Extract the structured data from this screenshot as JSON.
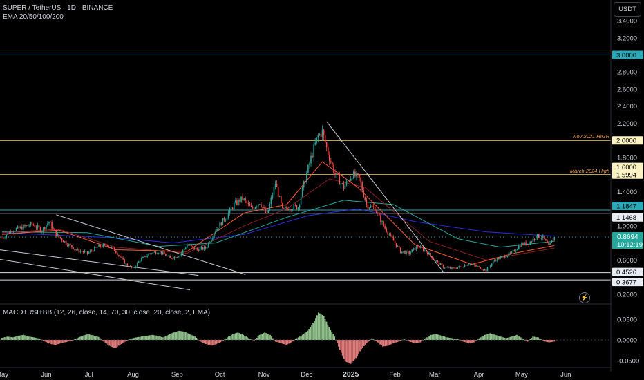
{
  "header": {
    "symbol_line": "SUPER / TetherUS · 1D · BINANCE",
    "indicator_line": "EMA 20/50/100/200",
    "macd_label": "MACD+RSI+BB (12, 26, close, 14, 70, 30, close, 20, close, 2, EMA)",
    "currency_button": "USDT"
  },
  "colors": {
    "background": "#000000",
    "up_candle": "#26a69a",
    "down_candle": "#ef5350",
    "ema20": "#ff5a36",
    "ema50": "#8a1f1f",
    "ema100": "#26a69a",
    "ema200": "#2a2ee0",
    "resistance_teal": "#2aa9b8",
    "yellow_level": "#f5d76e",
    "white_level": "#d8dde6",
    "trendline": "#c9ccd3",
    "hist_up": "#8fbf8a",
    "hist_down": "#e07a7a",
    "last_price": "#26a69a"
  },
  "chart_data": {
    "type": "candlestick",
    "symbol": "SUPER / TetherUS",
    "timeframe": "1D",
    "exchange": "BINANCE",
    "y_axis_ticks": [
      "3.4000",
      "3.2000",
      "2.8000",
      "2.6000",
      "2.4000",
      "2.2000",
      "1.8000",
      "1.4000",
      "1.0000",
      "0.8000",
      "0.6000",
      "0.2000"
    ],
    "x_axis_ticks": [
      "May",
      "Jun",
      "Jul",
      "Aug",
      "Sep",
      "Oct",
      "Nov",
      "Dec",
      "2025",
      "Feb",
      "Mar",
      "Apr",
      "May",
      "Jun"
    ],
    "last_price": "0.8694",
    "countdown": "10:12:19",
    "macd_y_ticks": [
      "0.0500",
      "0.0000",
      "-0.0500"
    ],
    "price_series": [
      [
        0,
        0.86
      ],
      [
        7,
        0.95
      ],
      [
        14,
        0.98
      ],
      [
        21,
        1.02
      ],
      [
        28,
        0.95
      ],
      [
        33,
        1.05
      ],
      [
        38,
        0.9
      ],
      [
        45,
        0.8
      ],
      [
        52,
        0.72
      ],
      [
        60,
        0.68
      ],
      [
        67,
        0.75
      ],
      [
        74,
        0.78
      ],
      [
        80,
        0.7
      ],
      [
        87,
        0.55
      ],
      [
        92,
        0.5
      ],
      [
        97,
        0.6
      ],
      [
        104,
        0.68
      ],
      [
        111,
        0.7
      ],
      [
        118,
        0.62
      ],
      [
        125,
        0.66
      ],
      [
        130,
        0.78
      ],
      [
        137,
        0.72
      ],
      [
        143,
        0.74
      ],
      [
        150,
        0.95
      ],
      [
        157,
        1.1
      ],
      [
        163,
        1.25
      ],
      [
        169,
        1.32
      ],
      [
        175,
        1.2
      ],
      [
        181,
        1.28
      ],
      [
        186,
        1.12
      ],
      [
        192,
        1.5
      ],
      [
        197,
        1.18
      ],
      [
        202,
        1.22
      ],
      [
        208,
        1.22
      ],
      [
        213,
        1.55
      ],
      [
        218,
        1.85
      ],
      [
        222,
        2.05
      ],
      [
        225,
        2.1
      ],
      [
        229,
        1.85
      ],
      [
        234,
        1.6
      ],
      [
        240,
        1.45
      ],
      [
        246,
        1.6
      ],
      [
        251,
        1.55
      ],
      [
        256,
        1.25
      ],
      [
        262,
        1.2
      ],
      [
        268,
        1.0
      ],
      [
        274,
        0.85
      ],
      [
        280,
        0.7
      ],
      [
        286,
        0.68
      ],
      [
        292,
        0.76
      ],
      [
        298,
        0.7
      ],
      [
        304,
        0.6
      ],
      [
        310,
        0.52
      ],
      [
        316,
        0.5
      ],
      [
        322,
        0.52
      ],
      [
        328,
        0.56
      ],
      [
        334,
        0.52
      ],
      [
        340,
        0.48
      ],
      [
        346,
        0.6
      ],
      [
        352,
        0.64
      ],
      [
        358,
        0.68
      ],
      [
        364,
        0.78
      ],
      [
        370,
        0.8
      ],
      [
        376,
        0.88
      ],
      [
        380,
        0.86
      ],
      [
        384,
        0.76
      ],
      [
        388,
        0.8694
      ]
    ],
    "ema20_series": [
      [
        0,
        0.9
      ],
      [
        40,
        0.95
      ],
      [
        80,
        0.72
      ],
      [
        130,
        0.7
      ],
      [
        170,
        1.15
      ],
      [
        200,
        1.25
      ],
      [
        225,
        1.75
      ],
      [
        250,
        1.45
      ],
      [
        290,
        0.78
      ],
      [
        330,
        0.55
      ],
      [
        360,
        0.68
      ],
      [
        388,
        0.77
      ]
    ],
    "ema50_series": [
      [
        0,
        0.92
      ],
      [
        40,
        0.96
      ],
      [
        80,
        0.75
      ],
      [
        130,
        0.68
      ],
      [
        170,
        1.0
      ],
      [
        200,
        1.2
      ],
      [
        230,
        1.55
      ],
      [
        255,
        1.45
      ],
      [
        300,
        0.82
      ],
      [
        340,
        0.6
      ],
      [
        388,
        0.74
      ]
    ],
    "ema100_series": [
      [
        0,
        0.93
      ],
      [
        60,
        0.92
      ],
      [
        110,
        0.76
      ],
      [
        150,
        0.8
      ],
      [
        200,
        1.1
      ],
      [
        240,
        1.3
      ],
      [
        275,
        1.25
      ],
      [
        320,
        0.85
      ],
      [
        350,
        0.75
      ],
      [
        388,
        0.82
      ]
    ],
    "ema200_series": [
      [
        0,
        0.92
      ],
      [
        80,
        0.86
      ],
      [
        120,
        0.8
      ],
      [
        170,
        0.9
      ],
      [
        215,
        1.12
      ],
      [
        250,
        1.2
      ],
      [
        290,
        1.05
      ],
      [
        340,
        0.93
      ],
      [
        388,
        0.88
      ]
    ],
    "horizontal_levels": [
      {
        "price": 3.0,
        "label": "3.0000",
        "kind": "teal",
        "note": ""
      },
      {
        "price": 2.0,
        "label": "2.0000",
        "kind": "yellow",
        "note": "Nov 2021 HIGH"
      },
      {
        "price": 1.6,
        "label": "1.6000",
        "kind": "yellow",
        "note": ""
      },
      {
        "price": 1.5994,
        "label": "1.5994",
        "kind": "yellow",
        "note": "March 2024 High"
      },
      {
        "price": 1.1847,
        "label": "1.1847",
        "kind": "teal",
        "note": ""
      },
      {
        "price": 1.1468,
        "label": "1.1468",
        "kind": "white",
        "note": ""
      },
      {
        "price": 0.4526,
        "label": "0.4526",
        "kind": "white",
        "note": ""
      },
      {
        "price": 0.3677,
        "label": "0.3677",
        "kind": "white",
        "note": ""
      }
    ],
    "trendlines": [
      [
        [
          38,
          1.13
        ],
        [
          171,
          0.43
        ]
      ],
      [
        [
          -2,
          0.72
        ],
        [
          138,
          0.42
        ]
      ],
      [
        [
          -2,
          0.61
        ],
        [
          132,
          0.25
        ]
      ],
      [
        [
          228,
          2.22
        ],
        [
          310,
          0.46
        ]
      ]
    ],
    "macd_histogram": [
      0.005,
      0.008,
      0.006,
      0.01,
      0.012,
      0.008,
      0.006,
      0.003,
      -0.004,
      -0.01,
      -0.012,
      -0.008,
      -0.005,
      -0.002,
      0.004,
      0.01,
      0.014,
      0.011,
      0.007,
      -0.004,
      -0.014,
      -0.02,
      -0.012,
      -0.004,
      0.003,
      0.006,
      0.008,
      0.01,
      0.012,
      0.01,
      0.006,
      0.012,
      0.018,
      0.022,
      0.02,
      0.014,
      0.008,
      -0.004,
      -0.01,
      -0.014,
      -0.01,
      -0.004,
      0.006,
      0.014,
      0.018,
      0.012,
      0.004,
      -0.002,
      0.012,
      0.018,
      0.012,
      -0.004,
      -0.008,
      -0.012,
      -0.006,
      0.004,
      0.012,
      0.022,
      0.04,
      0.066,
      0.058,
      0.03,
      0.008,
      -0.024,
      -0.052,
      -0.058,
      -0.044,
      -0.022,
      -0.008,
      0.004,
      -0.006,
      -0.016,
      -0.014,
      -0.008,
      -0.004,
      0.002,
      -0.004,
      -0.008,
      -0.006,
      0.004,
      0.012,
      0.014,
      0.01,
      0.006,
      0.004,
      0.002,
      -0.004,
      -0.008,
      -0.006,
      0.004,
      0.012,
      0.016,
      0.012,
      0.008,
      0.004,
      0.008,
      0.012,
      0.004,
      -0.004,
      0.008,
      0.006,
      -0.003,
      -0.006,
      -0.004
    ]
  }
}
